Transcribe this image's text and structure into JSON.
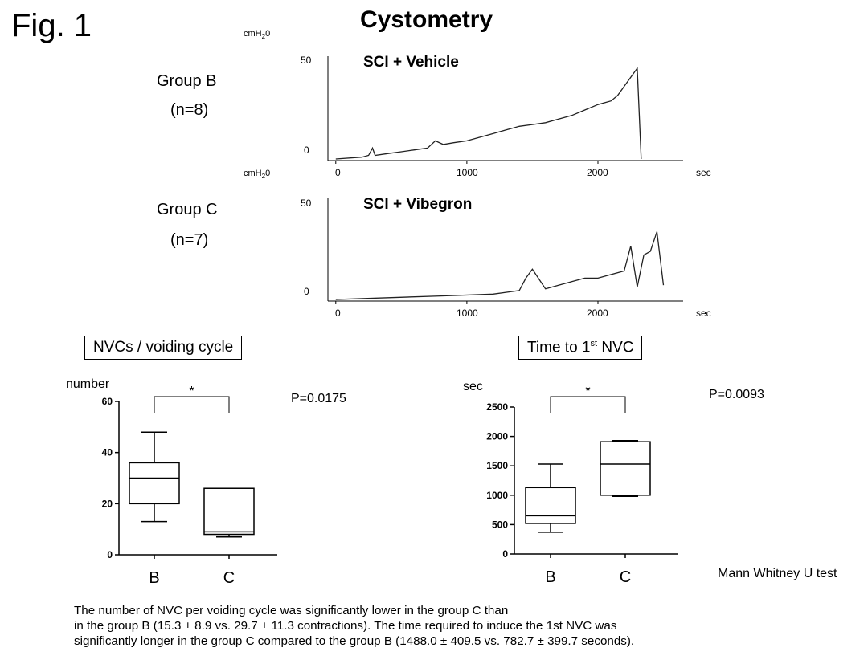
{
  "figure_label": "Fig. 1",
  "main_title": "Cystometry",
  "footer_test": "Mann Whitney U test",
  "caption_lines": [
    "The number of NVC per voiding cycle was significantly lower in the group C than",
    "in the group B (15.3 ± 8.9 vs. 29.7 ± 11.3 contractions). The time required to induce the 1st NVC was",
    "significantly longer in the group C compared to the group B (1488.0 ± 409.5 vs. 782.7 ± 399.7 seconds)."
  ],
  "traces": [
    {
      "group": "Group B",
      "n": "(n=8)",
      "title": "SCI + Vehicle",
      "unit": "cmH20",
      "xunit": "sec",
      "yticks": [
        "50",
        "0"
      ],
      "xticks": [
        "0",
        "1000",
        "2000"
      ]
    },
    {
      "group": "Group C",
      "n": "(n=7)",
      "title": "SCI + Vibegron",
      "unit": "cmH20",
      "xunit": "sec",
      "yticks": [
        "50",
        "0"
      ],
      "xticks": [
        "0",
        "1000",
        "2000"
      ]
    }
  ],
  "panels": [
    {
      "title": "NVCs / voiding cycle",
      "ylabel": "number",
      "pvalue": "P=0.0175",
      "sig": "*"
    },
    {
      "title": "Time to 1st NVC",
      "title_main": "Time to 1",
      "title_sup": "st",
      "title_end": " NVC",
      "ylabel": "sec",
      "pvalue": "P=0.0093",
      "sig": "*"
    }
  ],
  "chart_data": [
    {
      "type": "line",
      "title": "SCI + Vehicle",
      "ylabel": "cmH20",
      "xlabel": "sec",
      "xlim": [
        -60,
        2650
      ],
      "ylim": [
        0,
        50
      ],
      "xticks": [
        0,
        1000,
        2000
      ],
      "yticks": [
        0,
        50
      ],
      "series": [
        {
          "x": [
            0,
            200,
            250,
            280,
            300,
            400,
            500,
            600,
            700,
            760,
            820,
            900,
            1000,
            1100,
            1200,
            1300,
            1400,
            1500,
            1600,
            1700,
            1800,
            1900,
            2000,
            2100,
            2150,
            2200,
            2250,
            2300,
            2330
          ],
          "y": [
            0,
            1,
            2,
            6,
            2,
            3,
            4,
            5,
            6,
            10,
            8,
            9,
            10,
            12,
            14,
            16,
            18,
            19,
            20,
            22,
            24,
            27,
            30,
            32,
            35,
            40,
            45,
            50,
            0
          ]
        }
      ]
    },
    {
      "type": "line",
      "title": "SCI + Vibegron",
      "ylabel": "cmH20",
      "xlabel": "sec",
      "xlim": [
        -60,
        2650
      ],
      "ylim": [
        0,
        50
      ],
      "xticks": [
        0,
        1000,
        2000
      ],
      "yticks": [
        0,
        50
      ],
      "series": [
        {
          "x": [
            0,
            400,
            800,
            1200,
            1400,
            1450,
            1500,
            1600,
            1800,
            1900,
            2000,
            2100,
            2200,
            2250,
            2300,
            2350,
            2400,
            2450,
            2500
          ],
          "y": [
            0,
            1,
            2,
            3,
            5,
            12,
            17,
            6,
            10,
            12,
            12,
            14,
            16,
            30,
            7,
            25,
            27,
            38,
            8
          ]
        }
      ]
    },
    {
      "type": "box",
      "title": "NVCs / voiding cycle",
      "ylabel": "number",
      "categories": [
        "B",
        "C"
      ],
      "ylim": [
        0,
        60
      ],
      "yticks": [
        0,
        20,
        40,
        60
      ],
      "boxes": [
        {
          "category": "B",
          "min": 13,
          "q1": 20,
          "median": 30,
          "q3": 36,
          "max": 48
        },
        {
          "category": "C",
          "min": 7,
          "q1": 8,
          "median": 9,
          "q3": 26,
          "max": 26
        }
      ],
      "annotation": "P=0.0175"
    },
    {
      "type": "box",
      "title": "Time to 1st NVC",
      "ylabel": "sec",
      "categories": [
        "B",
        "C"
      ],
      "ylim": [
        0,
        2500
      ],
      "yticks": [
        0,
        500,
        1000,
        1500,
        2000,
        2500
      ],
      "boxes": [
        {
          "category": "B",
          "min": 370,
          "q1": 520,
          "median": 650,
          "q3": 1130,
          "max": 1530
        },
        {
          "category": "C",
          "min": 980,
          "q1": 1000,
          "median": 1530,
          "q3": 1910,
          "max": 1930
        }
      ],
      "annotation": "P=0.0093"
    }
  ]
}
